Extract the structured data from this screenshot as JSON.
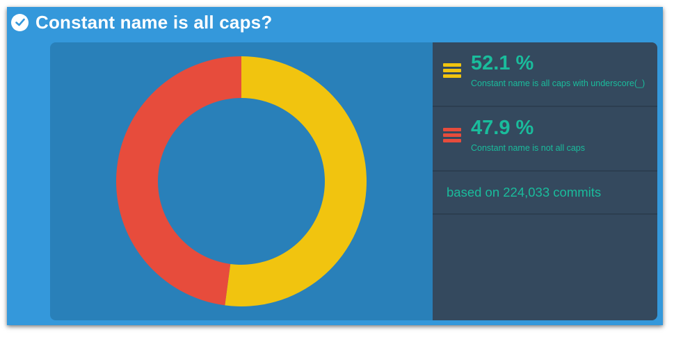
{
  "header": {
    "title": "Constant name is all caps?",
    "icon": "check-circle-icon"
  },
  "chart_data": {
    "type": "pie",
    "variant": "donut",
    "slices": [
      {
        "label": "Constant name is all caps with underscore(_)",
        "value": 52.1,
        "value_label": "52.1 %",
        "color": "#f1c40f"
      },
      {
        "label": "Constant name is not all caps",
        "value": 47.9,
        "value_label": "47.9 %",
        "color": "#e74c3c"
      }
    ],
    "legend_position": "right",
    "footnote": "based on 224,033 commits"
  },
  "colors": {
    "card": "#3498db",
    "panel": "#2980b9",
    "sidebar": "#34495e",
    "text_accent": "#1abc9c"
  }
}
